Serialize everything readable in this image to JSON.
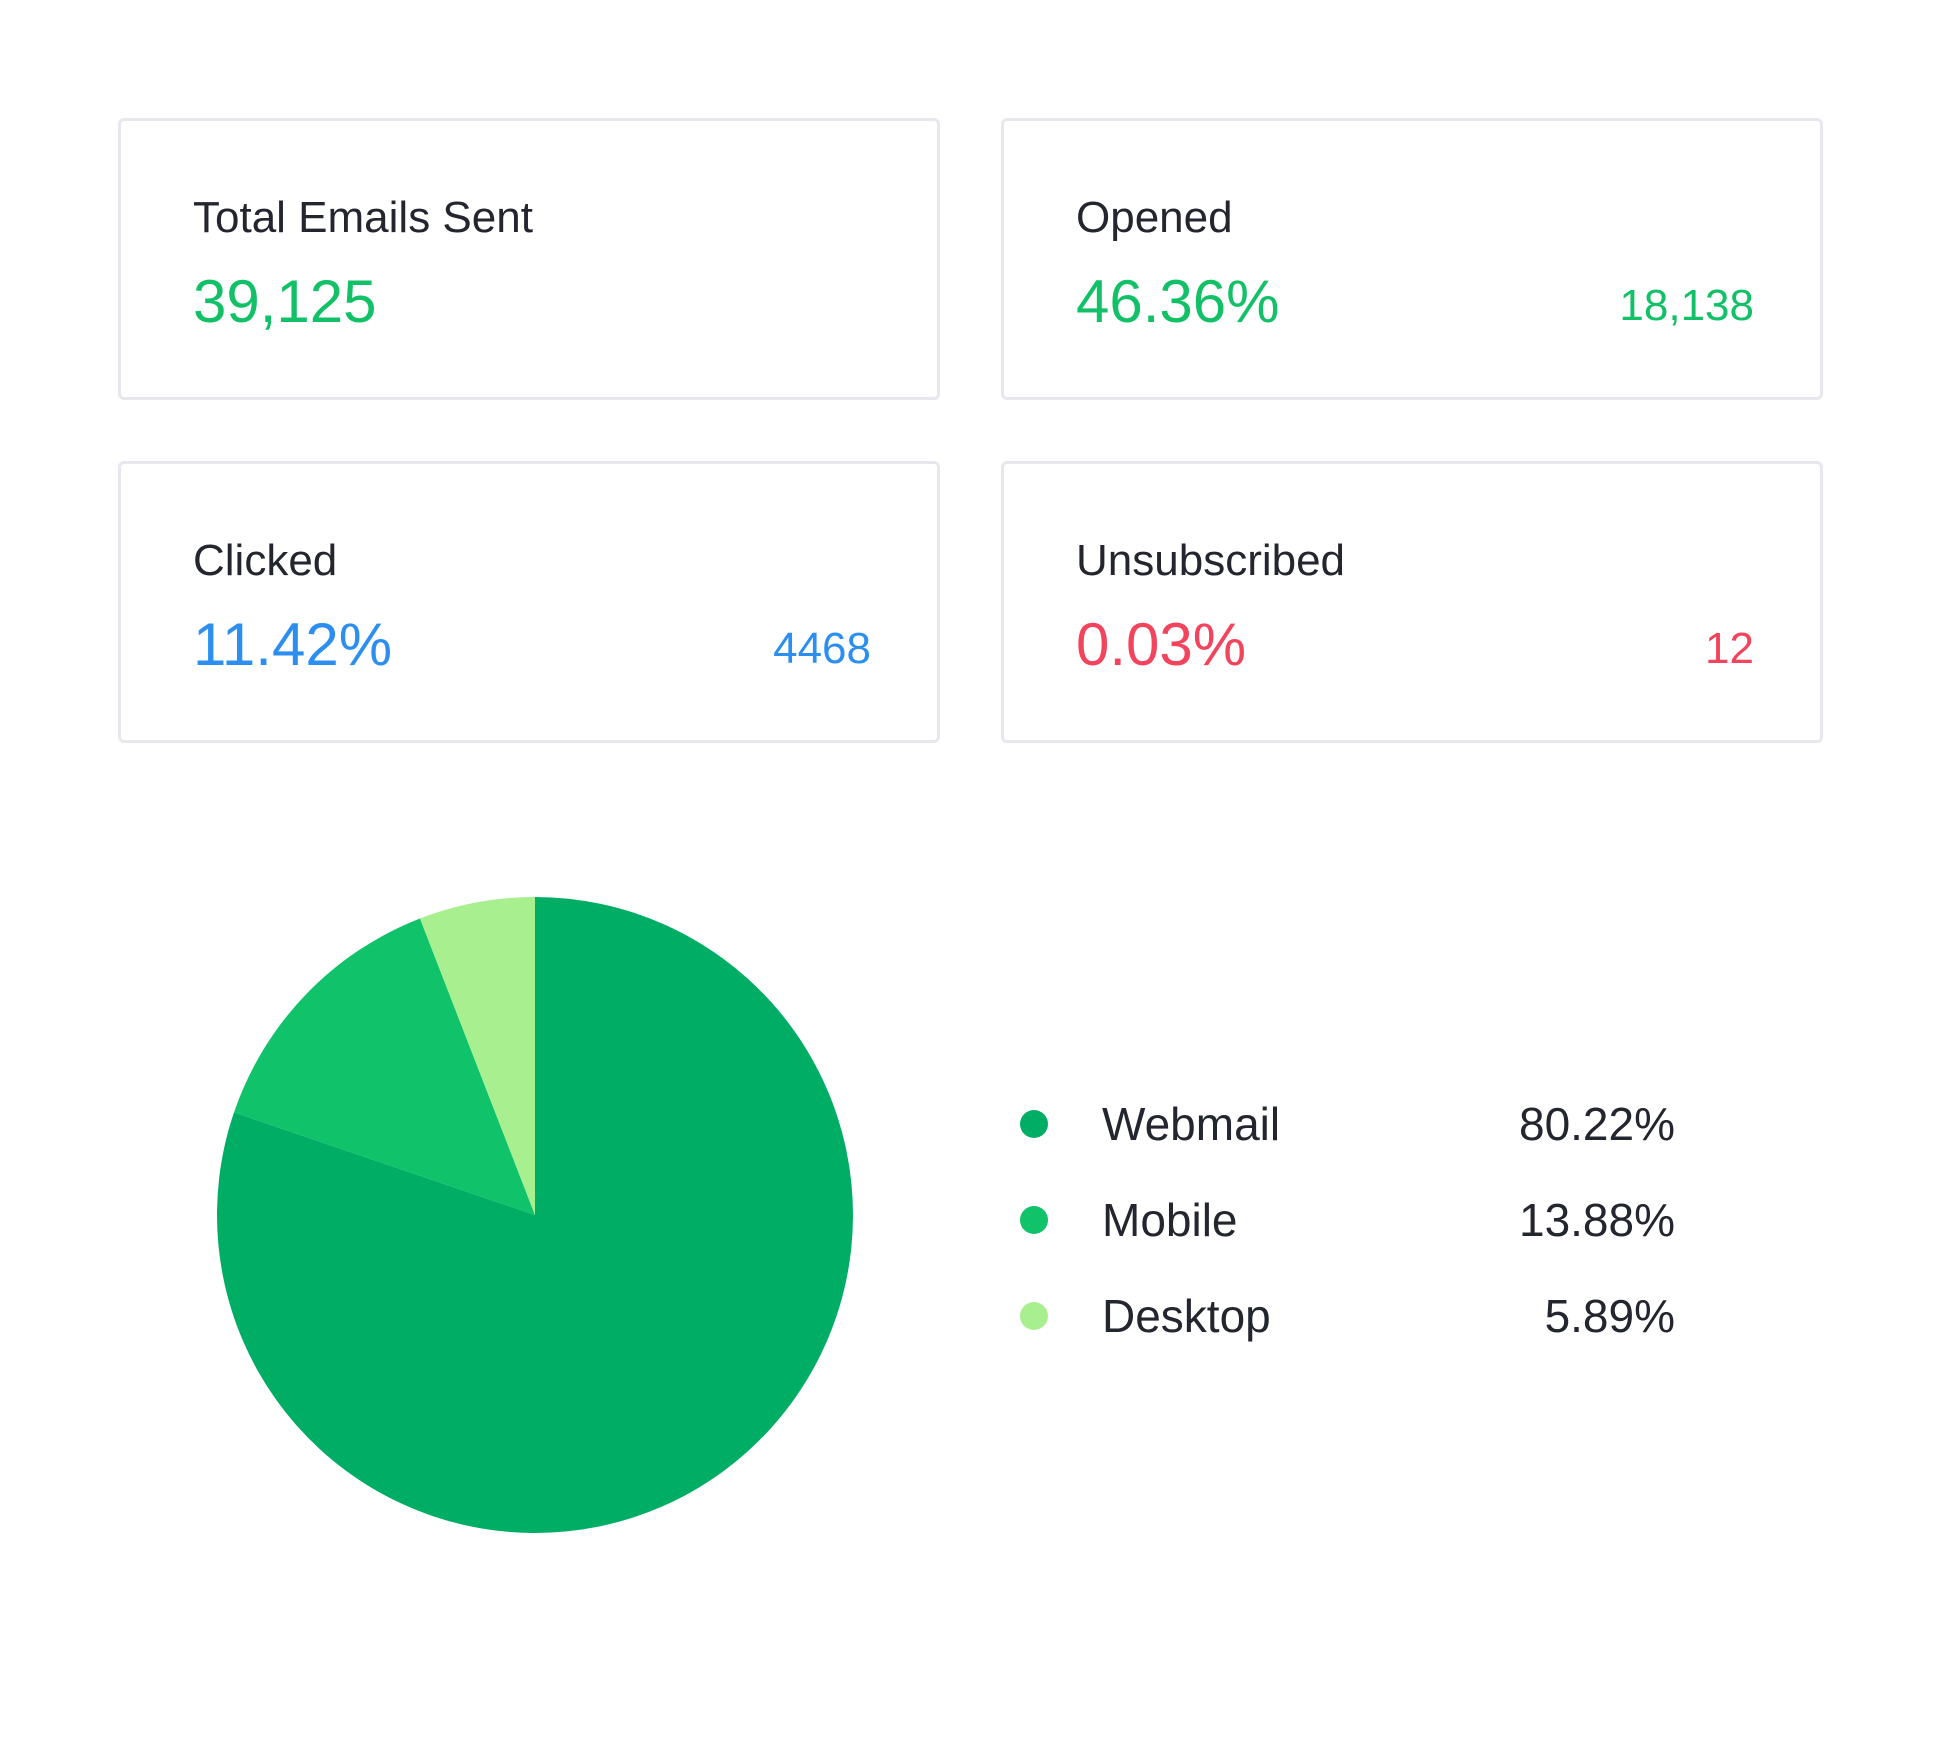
{
  "cards": {
    "total": {
      "title": "Total Emails Sent",
      "value": "39,125",
      "color": "#12c167"
    },
    "opened": {
      "title": "Opened",
      "value": "46.36%",
      "count": "18,138",
      "color": "#12c167"
    },
    "clicked": {
      "title": "Clicked",
      "value": "11.42%",
      "count": "4468",
      "color": "#2c8ff0"
    },
    "unsubscribed": {
      "title": "Unsubscribed",
      "value": "0.03%",
      "count": "12",
      "color": "#f2445d"
    }
  },
  "chart_data": {
    "type": "pie",
    "categories": [
      "Webmail",
      "Mobile",
      "Desktop"
    ],
    "values": [
      80.22,
      13.88,
      5.89
    ],
    "labels": [
      "80.22%",
      "13.88%",
      "5.89%"
    ],
    "colors": [
      "#00ad65",
      "#10c26a",
      "#a8ef8f"
    ],
    "legend_placement": "right"
  }
}
